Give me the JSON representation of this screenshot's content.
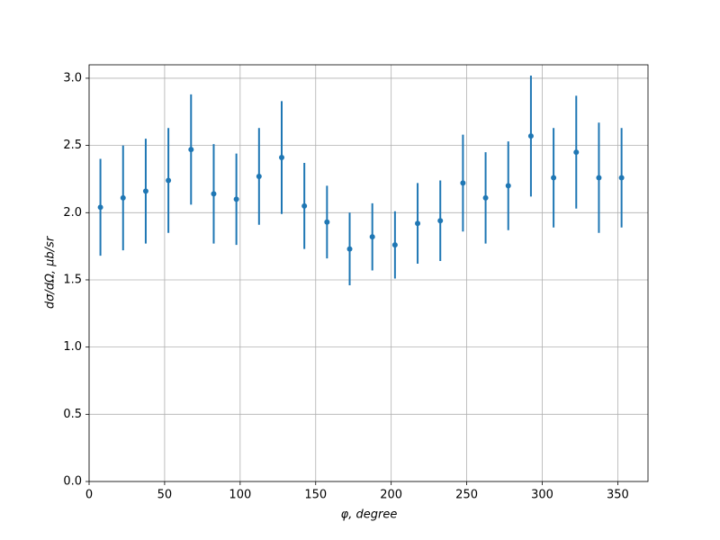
{
  "chart_data": {
    "type": "scatter",
    "xlabel": "φ, degree",
    "ylabel": "dσ/dΩ, μb/sr",
    "x": [
      7.5,
      22.5,
      37.5,
      52.5,
      67.5,
      82.5,
      97.5,
      112.5,
      127.5,
      142.5,
      157.5,
      172.5,
      187.5,
      202.5,
      217.5,
      232.5,
      247.5,
      262.5,
      277.5,
      292.5,
      307.5,
      322.5,
      337.5,
      352.5
    ],
    "values": [
      2.04,
      2.11,
      2.16,
      2.24,
      2.47,
      2.14,
      2.1,
      2.27,
      2.41,
      2.05,
      1.93,
      1.73,
      1.82,
      1.76,
      1.92,
      1.94,
      2.22,
      2.11,
      2.2,
      2.57,
      2.26,
      2.45,
      2.26,
      2.26
    ],
    "errors": [
      0.36,
      0.39,
      0.39,
      0.39,
      0.41,
      0.37,
      0.34,
      0.36,
      0.42,
      0.32,
      0.27,
      0.27,
      0.25,
      0.25,
      0.3,
      0.3,
      0.36,
      0.34,
      0.33,
      0.45,
      0.37,
      0.42,
      0.41,
      0.37
    ],
    "color": "#1f77b4",
    "xlim": [
      0,
      370
    ],
    "xticks": [
      0,
      50,
      100,
      150,
      200,
      250,
      300,
      350
    ],
    "ylim": [
      0,
      3.1
    ],
    "yticks": [
      {
        "value": 0,
        "label": "0.0"
      },
      0.5,
      {
        "value": 1,
        "label": "1.0"
      },
      1.5,
      {
        "value": 2,
        "label": "2.0"
      },
      2.5,
      {
        "value": 3,
        "label": "3.0"
      }
    ],
    "grid": true
  }
}
